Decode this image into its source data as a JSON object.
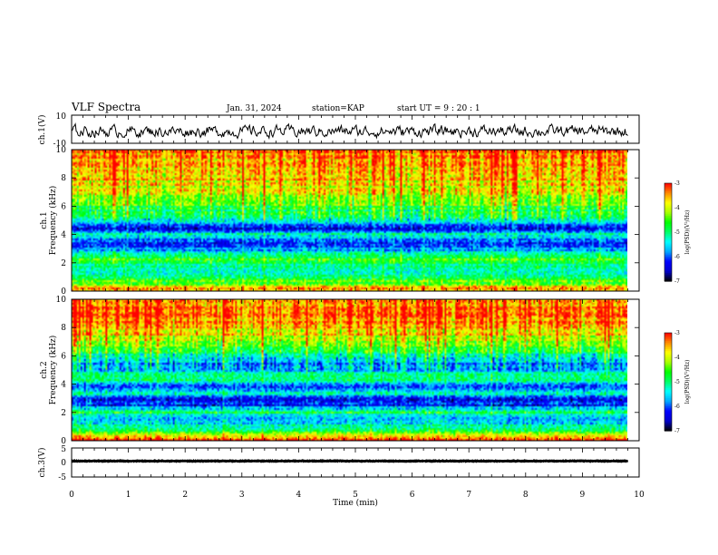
{
  "header": {
    "title": "VLF Spectra",
    "date": "Jan. 31, 2024",
    "station": "station=KAP",
    "start": "start UT =  9 : 20 : 1"
  },
  "colors": {
    "scale": [
      "#000000",
      "#0000cc",
      "#0000ff",
      "#00aaff",
      "#00ffff",
      "#00ff66",
      "#00ff00",
      "#aaff00",
      "#ffff00",
      "#ff8800",
      "#ff0000"
    ],
    "trace": "#000000"
  },
  "chart_data": [
    {
      "type": "line",
      "panel": "ch1-waveform",
      "ylabel": "ch.1(V)",
      "ylim": [
        -10,
        10
      ],
      "yticks": [
        "10",
        "-10"
      ],
      "xlim": [
        0,
        10
      ],
      "description_values": {
        "x_range_min": [
          0,
          9.8
        ],
        "mean": -1.5,
        "amplitude": 4
      }
    },
    {
      "type": "heatmap",
      "panel": "ch1-spectrogram",
      "ylabel": "ch.1\nFrequency (kHz)",
      "ylim": [
        0,
        10
      ],
      "yticks": [
        "0",
        "2",
        "4",
        "6",
        "8",
        "10"
      ],
      "xlim": [
        0,
        9.8
      ],
      "colorbar": {
        "label": "log(PSD)(V²/Hz)",
        "range": [
          -7,
          -3
        ],
        "ticks": [
          "-3",
          "-4",
          "-5",
          "-6",
          "-7"
        ]
      },
      "band_profile_khz": [
        {
          "f": 0.2,
          "v": -3.4
        },
        {
          "f": 0.5,
          "v": -4.2
        },
        {
          "f": 1.0,
          "v": -5.2
        },
        {
          "f": 1.5,
          "v": -5.5
        },
        {
          "f": 2.0,
          "v": -5.0
        },
        {
          "f": 2.4,
          "v": -4.6
        },
        {
          "f": 2.8,
          "v": -5.6
        },
        {
          "f": 3.2,
          "v": -6.3
        },
        {
          "f": 3.6,
          "v": -6.0
        },
        {
          "f": 4.0,
          "v": -5.2
        },
        {
          "f": 4.4,
          "v": -6.2
        },
        {
          "f": 4.8,
          "v": -5.9
        },
        {
          "f": 5.3,
          "v": -5.0
        },
        {
          "f": 5.8,
          "v": -4.9
        },
        {
          "f": 6.2,
          "v": -4.4
        },
        {
          "f": 7.0,
          "v": -4.1
        },
        {
          "f": 8.0,
          "v": -3.7
        },
        {
          "f": 9.0,
          "v": -3.5
        },
        {
          "f": 10.0,
          "v": -3.5
        }
      ]
    },
    {
      "type": "heatmap",
      "panel": "ch2-spectrogram",
      "ylabel": "ch.2\nFrequency (kHz)",
      "ylim": [
        0,
        10
      ],
      "yticks": [
        "0",
        "2",
        "4",
        "6",
        "8",
        "10"
      ],
      "xlim": [
        0,
        9.8
      ],
      "colorbar": {
        "label": "log(PSD)(V²/Hz)",
        "range": [
          -7,
          -3
        ],
        "ticks": [
          "-3",
          "-4",
          "-5",
          "-6",
          "-7"
        ]
      },
      "band_profile_khz": [
        {
          "f": 0.2,
          "v": -3.3
        },
        {
          "f": 0.6,
          "v": -4.4
        },
        {
          "f": 1.0,
          "v": -5.3
        },
        {
          "f": 1.6,
          "v": -5.6
        },
        {
          "f": 2.0,
          "v": -5.0
        },
        {
          "f": 2.5,
          "v": -6.2
        },
        {
          "f": 3.0,
          "v": -6.4
        },
        {
          "f": 3.4,
          "v": -5.0
        },
        {
          "f": 3.8,
          "v": -6.2
        },
        {
          "f": 4.2,
          "v": -5.3
        },
        {
          "f": 4.6,
          "v": -5.0
        },
        {
          "f": 5.2,
          "v": -6.0
        },
        {
          "f": 5.8,
          "v": -5.4
        },
        {
          "f": 6.4,
          "v": -4.8
        },
        {
          "f": 7.0,
          "v": -4.2
        },
        {
          "f": 8.0,
          "v": -3.6
        },
        {
          "f": 9.0,
          "v": -3.5
        },
        {
          "f": 10.0,
          "v": -3.4
        }
      ]
    },
    {
      "type": "line",
      "panel": "ch3-waveform",
      "ylabel": "ch.3(V)",
      "ylim": [
        -5,
        5
      ],
      "yticks": [
        "5",
        "0",
        "-5"
      ],
      "xlim": [
        0,
        10
      ],
      "xlabel": "Time (min)",
      "xticks": [
        "0",
        "1",
        "2",
        "3",
        "4",
        "5",
        "6",
        "7",
        "8",
        "9",
        "10"
      ],
      "description_values": {
        "x_range_min": [
          0,
          9.8
        ],
        "mean": 0.5,
        "amplitude": 0.6
      }
    }
  ]
}
